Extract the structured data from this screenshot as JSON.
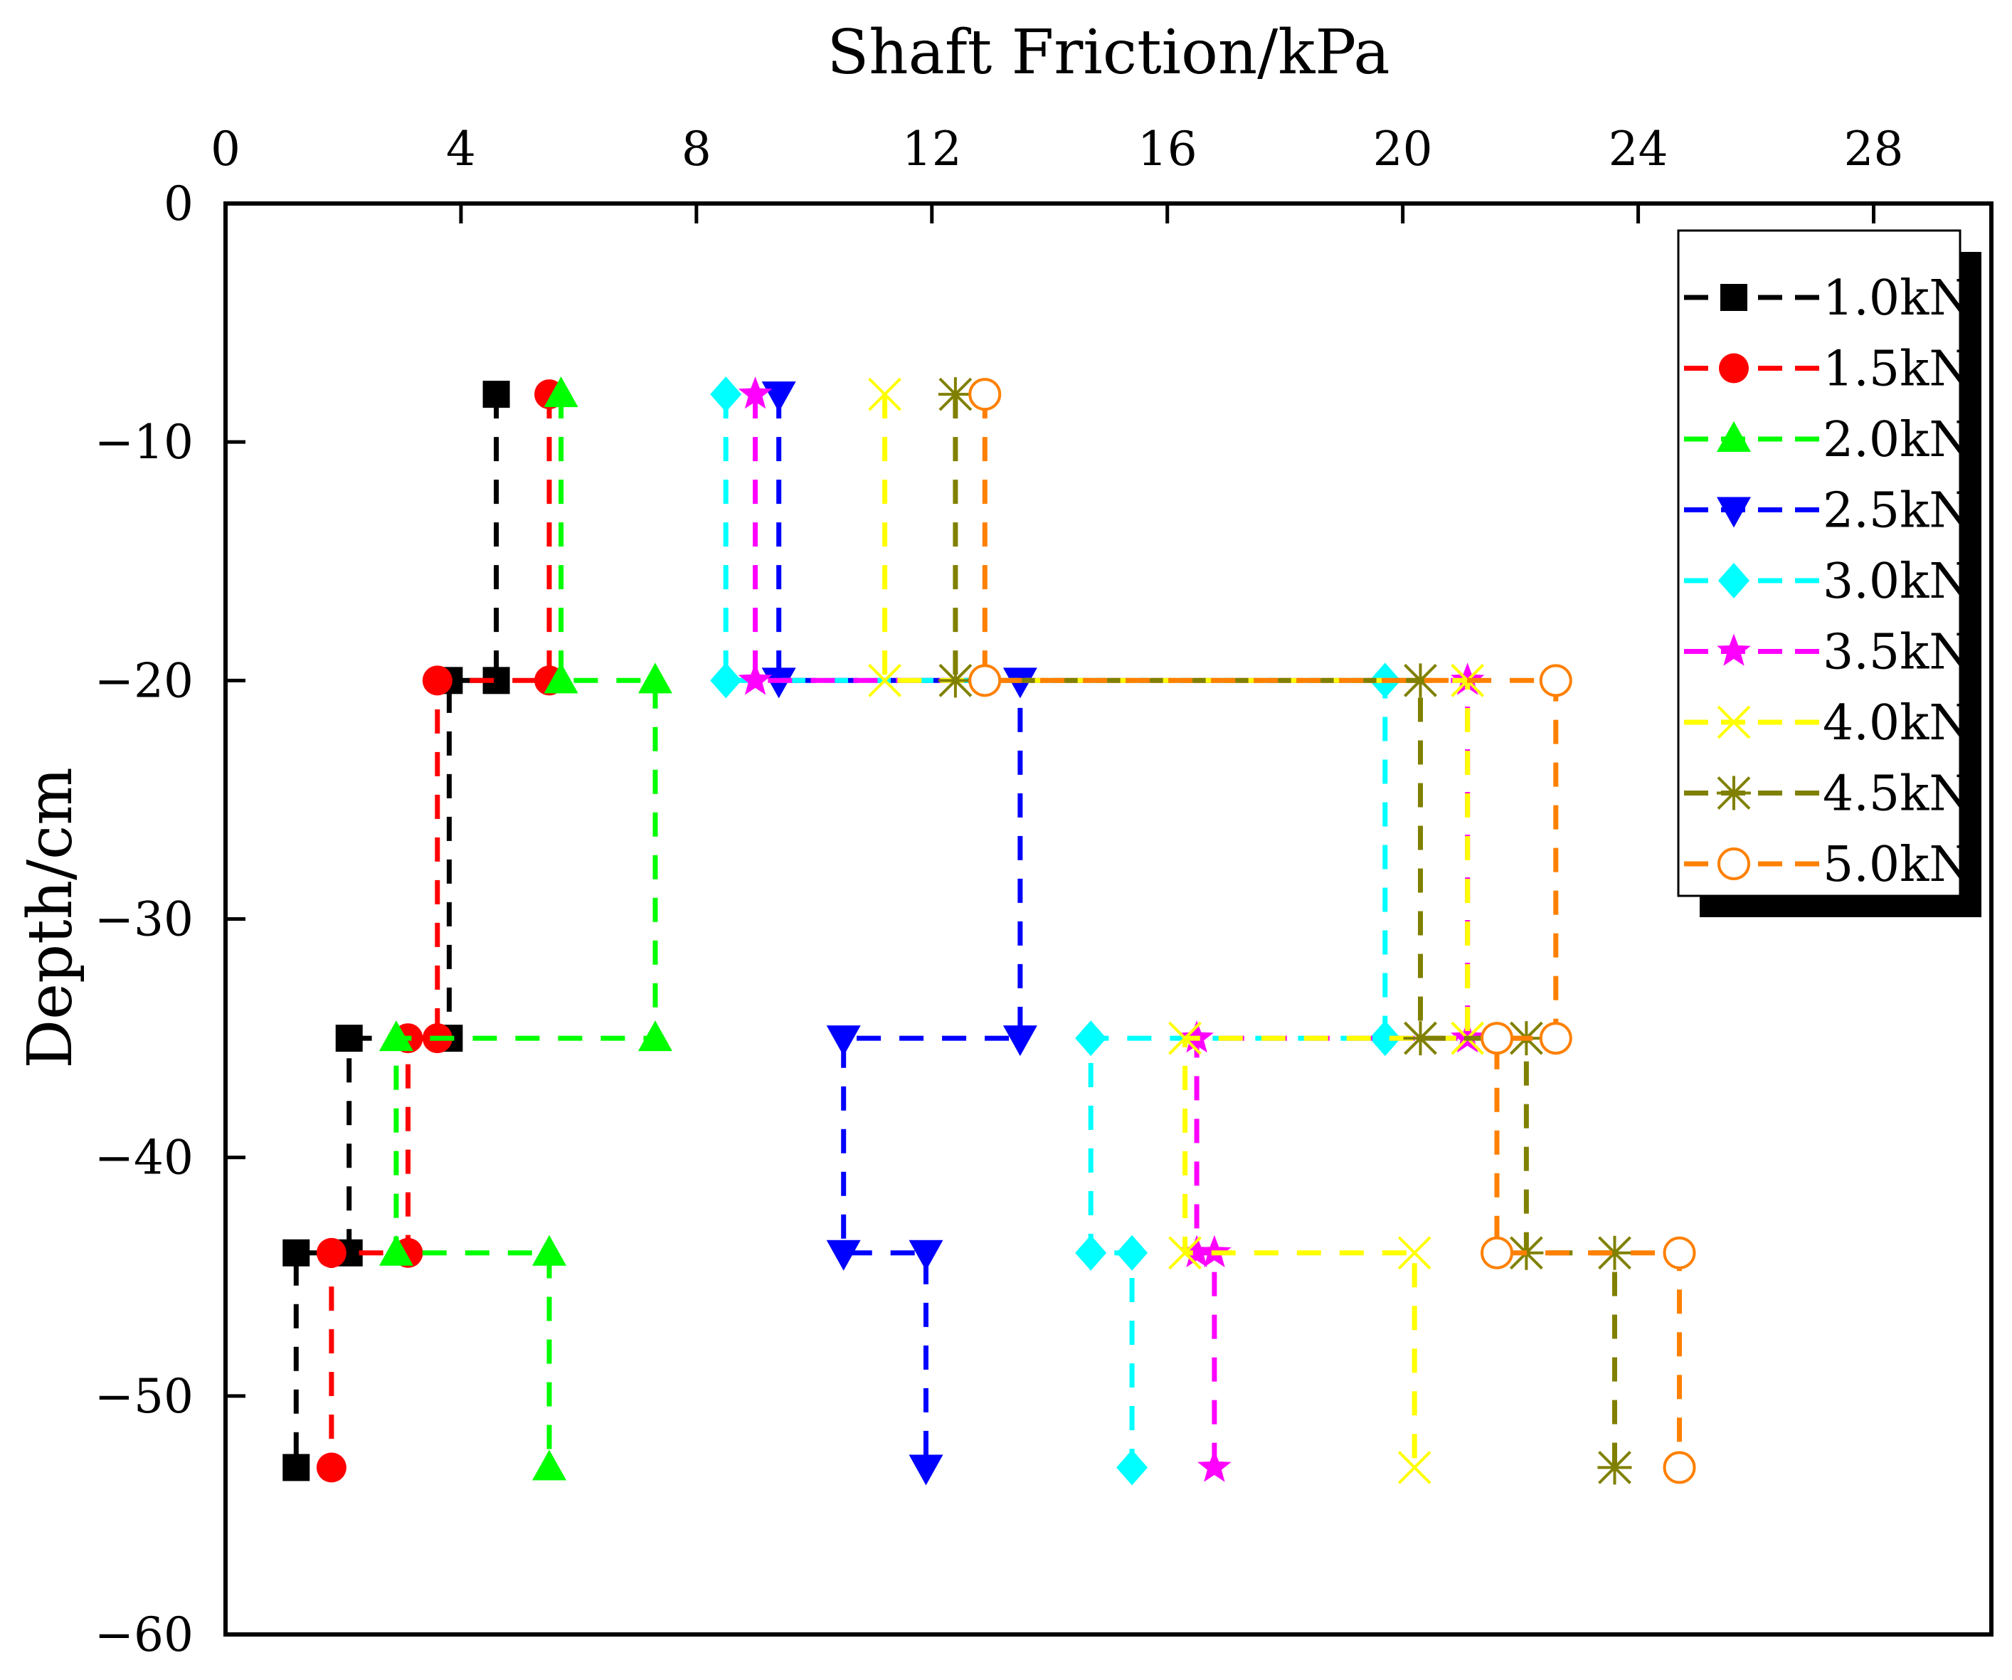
{
  "chart_data": {
    "type": "line",
    "title": "",
    "xlabel": "Shaft Friction/kPa",
    "ylabel": "Depth/cm",
    "x_axis_position": "top",
    "xlim": [
      0,
      30
    ],
    "ylim": [
      -60,
      0
    ],
    "xticks": [
      0,
      4,
      8,
      12,
      16,
      20,
      24,
      28
    ],
    "yticks": [
      0,
      -10,
      -20,
      -30,
      -40,
      -50,
      -60
    ],
    "xtick_labels": [
      "0",
      "4",
      "8",
      "12",
      "16",
      "20",
      "24",
      "28"
    ],
    "ytick_labels": [
      "0",
      "−10",
      "−20",
      "−30",
      "−40",
      "−50",
      "−60"
    ],
    "grid": false,
    "legend_position": "top-right",
    "line_style": "dashed-step",
    "series": [
      {
        "name": "1.0kN",
        "color": "#000000",
        "marker": "square-filled",
        "points": [
          [
            4.6,
            -8
          ],
          [
            4.6,
            -20
          ],
          [
            3.8,
            -20
          ],
          [
            3.8,
            -35
          ],
          [
            2.1,
            -35
          ],
          [
            2.1,
            -44
          ],
          [
            1.2,
            -44
          ],
          [
            1.2,
            -53
          ]
        ]
      },
      {
        "name": "1.5kN",
        "color": "#ff0000",
        "marker": "circle-filled",
        "points": [
          [
            5.5,
            -8
          ],
          [
            5.5,
            -20
          ],
          [
            3.6,
            -20
          ],
          [
            3.6,
            -35
          ],
          [
            3.1,
            -35
          ],
          [
            3.1,
            -44
          ],
          [
            1.8,
            -44
          ],
          [
            1.8,
            -53
          ]
        ]
      },
      {
        "name": "2.0kN",
        "color": "#00ff00",
        "marker": "triangle-up-filled",
        "points": [
          [
            5.7,
            -8
          ],
          [
            5.7,
            -20
          ],
          [
            7.3,
            -20
          ],
          [
            7.3,
            -35
          ],
          [
            2.9,
            -35
          ],
          [
            2.9,
            -44
          ],
          [
            5.5,
            -44
          ],
          [
            5.5,
            -53
          ]
        ]
      },
      {
        "name": "2.5kN",
        "color": "#0000ff",
        "marker": "triangle-down-filled",
        "points": [
          [
            9.4,
            -8
          ],
          [
            9.4,
            -20
          ],
          [
            13.5,
            -20
          ],
          [
            13.5,
            -35
          ],
          [
            10.5,
            -35
          ],
          [
            10.5,
            -44
          ],
          [
            11.9,
            -44
          ],
          [
            11.9,
            -53
          ]
        ]
      },
      {
        "name": "3.0kN",
        "color": "#00ffff",
        "marker": "diamond-filled",
        "points": [
          [
            8.5,
            -8
          ],
          [
            8.5,
            -20
          ],
          [
            19.7,
            -20
          ],
          [
            19.7,
            -35
          ],
          [
            14.7,
            -35
          ],
          [
            14.7,
            -44
          ],
          [
            15.4,
            -44
          ],
          [
            15.4,
            -53
          ]
        ]
      },
      {
        "name": "3.5kN",
        "color": "#ff00ff",
        "marker": "star-filled",
        "points": [
          [
            9.0,
            -8
          ],
          [
            9.0,
            -20
          ],
          [
            21.1,
            -20
          ],
          [
            21.1,
            -35
          ],
          [
            16.5,
            -35
          ],
          [
            16.5,
            -44
          ],
          [
            16.8,
            -44
          ],
          [
            16.8,
            -53
          ]
        ]
      },
      {
        "name": "4.0kN",
        "color": "#ffff00",
        "marker": "x",
        "points": [
          [
            11.2,
            -8
          ],
          [
            11.2,
            -20
          ],
          [
            21.1,
            -20
          ],
          [
            21.1,
            -35
          ],
          [
            16.3,
            -35
          ],
          [
            16.3,
            -44
          ],
          [
            20.2,
            -44
          ],
          [
            20.2,
            -53
          ]
        ]
      },
      {
        "name": "4.5kN",
        "color": "#808000",
        "marker": "asterisk",
        "points": [
          [
            12.4,
            -8
          ],
          [
            12.4,
            -20
          ],
          [
            20.3,
            -20
          ],
          [
            20.3,
            -35
          ],
          [
            22.1,
            -35
          ],
          [
            22.1,
            -44
          ],
          [
            23.6,
            -44
          ],
          [
            23.6,
            -53
          ]
        ]
      },
      {
        "name": "5.0kN",
        "color": "#ff8000",
        "marker": "circle-open",
        "points": [
          [
            12.9,
            -8
          ],
          [
            12.9,
            -20
          ],
          [
            22.6,
            -20
          ],
          [
            22.6,
            -35
          ],
          [
            21.6,
            -35
          ],
          [
            21.6,
            -44
          ],
          [
            24.7,
            -44
          ],
          [
            24.7,
            -53
          ]
        ]
      }
    ]
  }
}
